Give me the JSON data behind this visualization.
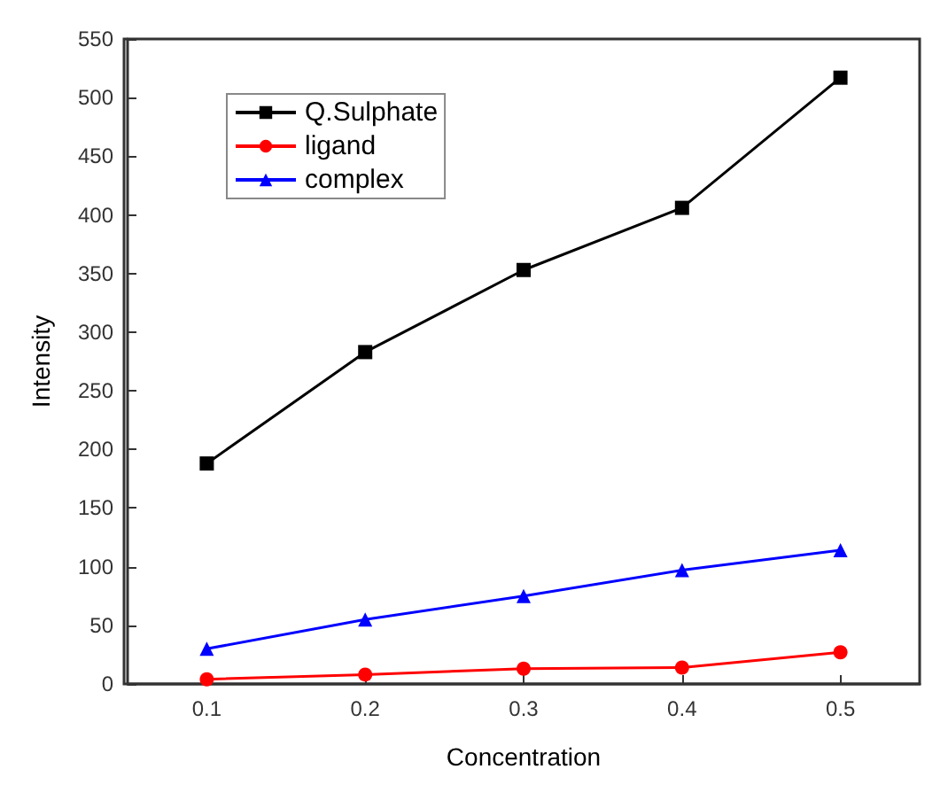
{
  "chart_data": {
    "type": "line",
    "xlabel": "Concentration",
    "ylabel": "Intensity",
    "x": [
      0.1,
      0.2,
      0.3,
      0.4,
      0.5
    ],
    "xlim": [
      0.05,
      0.55
    ],
    "xticks": [
      0.1,
      0.2,
      0.3,
      0.4,
      0.5
    ],
    "ylim": [
      0,
      550
    ],
    "yticks": [
      0,
      50,
      100,
      150,
      200,
      250,
      300,
      350,
      400,
      450,
      500,
      550
    ],
    "grid": false,
    "legend": "top left",
    "series": [
      {
        "name": "Q.Sulphate",
        "color": "#000000",
        "marker": "square",
        "values": [
          188,
          283,
          353,
          406,
          517
        ]
      },
      {
        "name": "ligand",
        "color": "#ff0000",
        "marker": "circle",
        "values": [
          4,
          8,
          13,
          14,
          27
        ]
      },
      {
        "name": "complex",
        "color": "#0000ff",
        "marker": "triangle",
        "values": [
          30,
          55,
          75,
          97,
          114
        ]
      }
    ]
  }
}
